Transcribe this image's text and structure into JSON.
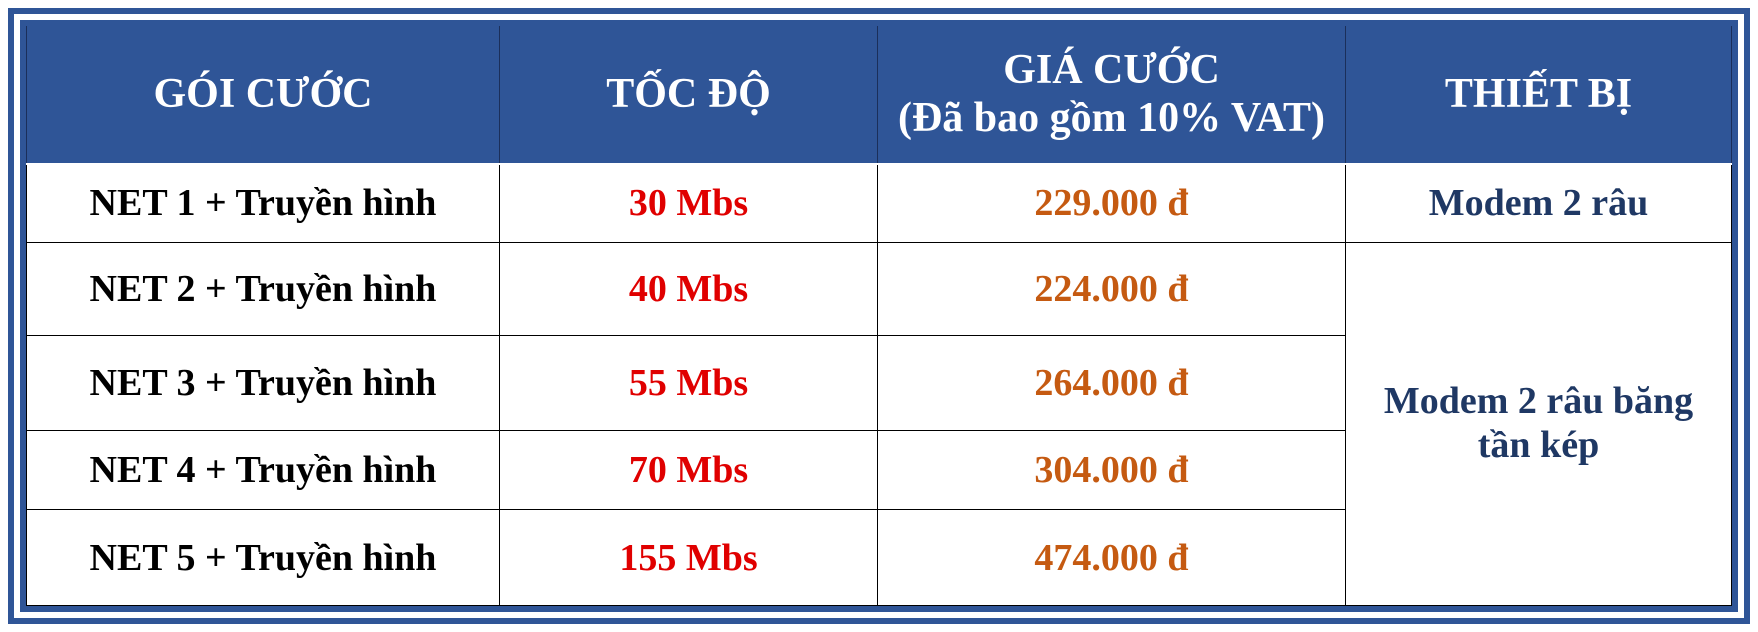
{
  "table": {
    "headers": {
      "package": "GÓI CƯỚC",
      "speed": "TỐC ĐỘ",
      "price_line1": "GIÁ CƯỚC",
      "price_line2": "(Đã bao gồm 10% VAT)",
      "device": "THIẾT BỊ"
    },
    "rows": [
      {
        "package": "NET 1 + Truyền hình",
        "speed": "30 Mbs",
        "price": "229.000 đ"
      },
      {
        "package": "NET 2 + Truyền hình",
        "speed": "40 Mbs",
        "price": "224.000 đ"
      },
      {
        "package": "NET 3 + Truyền hình",
        "speed": "55 Mbs",
        "price": "264.000 đ"
      },
      {
        "package": "NET 4 + Truyền hình",
        "speed": "70 Mbs",
        "price": "304.000 đ"
      },
      {
        "package": "NET 5 + Truyền hình",
        "speed": "155 Mbs",
        "price": "474.000 đ"
      }
    ],
    "devices": {
      "row1": "Modem 2 râu",
      "rows2_5_line1": "Modem 2 râu băng",
      "rows2_5_line2": "tần kép"
    }
  },
  "colors": {
    "header_bg": "#2f5597",
    "speed_text": "#e00000",
    "price_text": "#c55a11",
    "device_text": "#1f3864"
  }
}
